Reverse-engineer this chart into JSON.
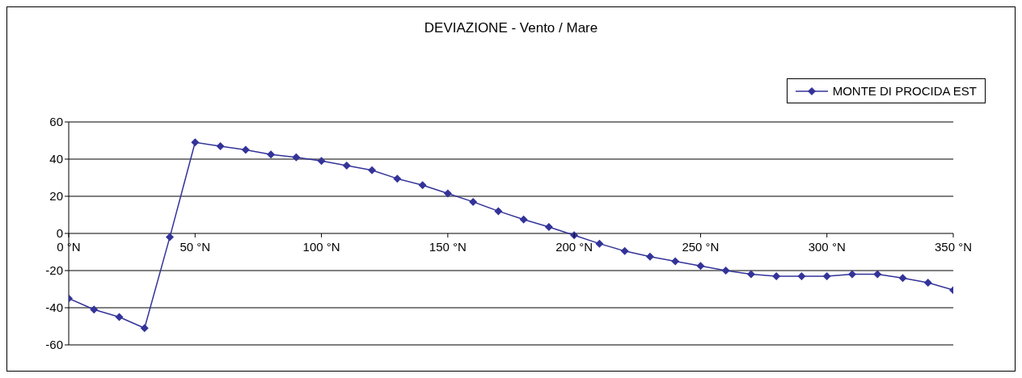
{
  "chart_data": {
    "type": "line",
    "title": "DEVIAZIONE - Vento / Mare",
    "x": [
      0,
      10,
      20,
      30,
      40,
      50,
      60,
      70,
      80,
      90,
      100,
      110,
      120,
      130,
      140,
      150,
      160,
      170,
      180,
      190,
      200,
      210,
      220,
      230,
      240,
      250,
      260,
      270,
      280,
      290,
      300,
      310,
      320,
      330,
      340,
      350
    ],
    "series": [
      {
        "name": "MONTE DI PROCIDA EST",
        "color": "#333399",
        "values": [
          -35,
          -41,
          -45,
          -51,
          -2,
          49,
          47,
          45,
          42.5,
          41,
          39,
          36.5,
          34,
          29.5,
          26,
          21.5,
          17,
          12,
          7.5,
          3.5,
          -1,
          -5.5,
          -9.5,
          -12.5,
          -15,
          -17.5,
          -20,
          -22,
          -23,
          -23,
          -23,
          -22,
          -22,
          -24,
          -26.5,
          -30.5
        ]
      }
    ],
    "xlim": [
      0,
      350
    ],
    "xticks": [
      {
        "value": 0,
        "label": "0 °N"
      },
      {
        "value": 50,
        "label": "50 °N"
      },
      {
        "value": 100,
        "label": "100 °N"
      },
      {
        "value": 150,
        "label": "150 °N"
      },
      {
        "value": 200,
        "label": "200 °N"
      },
      {
        "value": 250,
        "label": "250 °N"
      },
      {
        "value": 300,
        "label": "300 °N"
      },
      {
        "value": 350,
        "label": "350 °N"
      }
    ],
    "ylim": [
      -60,
      60
    ],
    "yticks": [
      -60,
      -40,
      -20,
      0,
      20,
      40,
      60
    ],
    "grid": "y",
    "legend": "top right",
    "marker": "diamond",
    "line_style": "solid"
  }
}
